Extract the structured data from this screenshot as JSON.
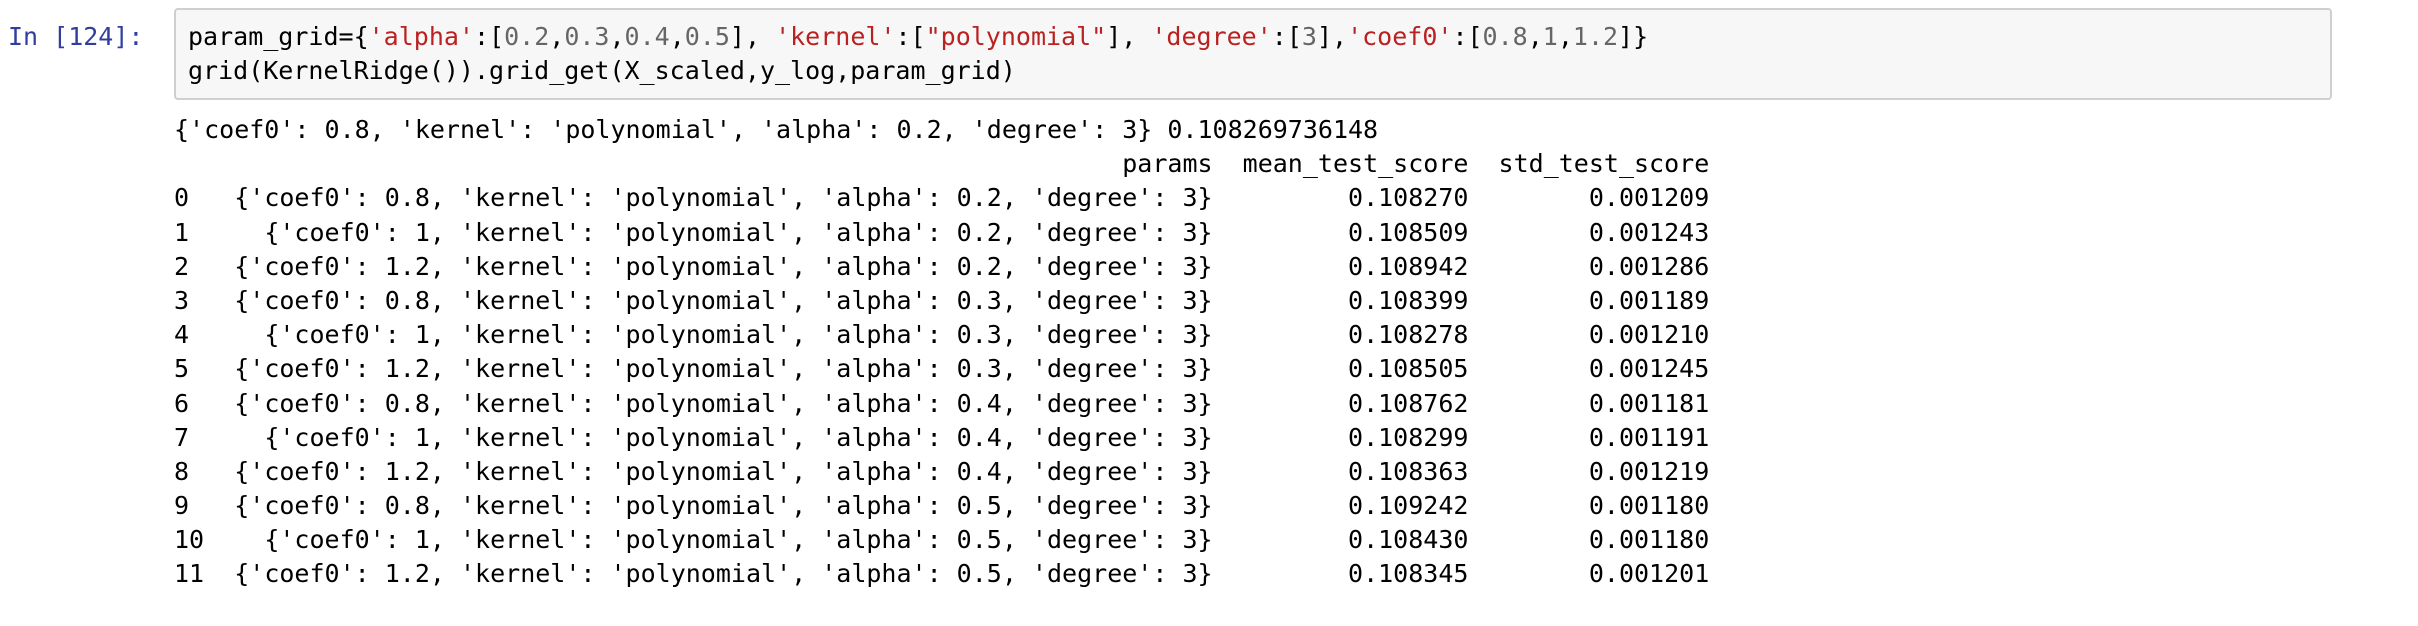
{
  "cell": {
    "prompt": "In [124]:",
    "code": {
      "line1": [
        {
          "t": "param_grid={",
          "c": ""
        },
        {
          "t": "'alpha'",
          "c": "str"
        },
        {
          "t": ":[",
          "c": ""
        },
        {
          "t": "0.2",
          "c": "num"
        },
        {
          "t": ",",
          "c": ""
        },
        {
          "t": "0.3",
          "c": "num"
        },
        {
          "t": ",",
          "c": ""
        },
        {
          "t": "0.4",
          "c": "num"
        },
        {
          "t": ",",
          "c": ""
        },
        {
          "t": "0.5",
          "c": "num"
        },
        {
          "t": "], ",
          "c": ""
        },
        {
          "t": "'kernel'",
          "c": "str"
        },
        {
          "t": ":[",
          "c": ""
        },
        {
          "t": "\"polynomial\"",
          "c": "str"
        },
        {
          "t": "], ",
          "c": ""
        },
        {
          "t": "'degree'",
          "c": "str"
        },
        {
          "t": ":[",
          "c": ""
        },
        {
          "t": "3",
          "c": "num"
        },
        {
          "t": "],",
          "c": ""
        },
        {
          "t": "'coef0'",
          "c": "str"
        },
        {
          "t": ":[",
          "c": ""
        },
        {
          "t": "0.8",
          "c": "num"
        },
        {
          "t": ",",
          "c": ""
        },
        {
          "t": "1",
          "c": "num"
        },
        {
          "t": ",",
          "c": ""
        },
        {
          "t": "1.2",
          "c": "num"
        },
        {
          "t": "]}",
          "c": ""
        }
      ],
      "line2": "grid(KernelRidge()).grid_get(X_scaled,y_log,param_grid)"
    },
    "output": {
      "best": "{'coef0': 0.8, 'kernel': 'polynomial', 'alpha': 0.2, 'degree': 3} 0.108269736148",
      "header": {
        "params": "params",
        "mean_test_score": "mean_test_score",
        "std_test_score": "std_test_score"
      },
      "rows": [
        {
          "index": "0",
          "params": "{'coef0': 0.8, 'kernel': 'polynomial', 'alpha': 0.2, 'degree': 3}",
          "mean": "0.108270",
          "std": "0.001209"
        },
        {
          "index": "1",
          "params": "{'coef0': 1, 'kernel': 'polynomial', 'alpha': 0.2, 'degree': 3}",
          "mean": "0.108509",
          "std": "0.001243"
        },
        {
          "index": "2",
          "params": "{'coef0': 1.2, 'kernel': 'polynomial', 'alpha': 0.2, 'degree': 3}",
          "mean": "0.108942",
          "std": "0.001286"
        },
        {
          "index": "3",
          "params": "{'coef0': 0.8, 'kernel': 'polynomial', 'alpha': 0.3, 'degree': 3}",
          "mean": "0.108399",
          "std": "0.001189"
        },
        {
          "index": "4",
          "params": "{'coef0': 1, 'kernel': 'polynomial', 'alpha': 0.3, 'degree': 3}",
          "mean": "0.108278",
          "std": "0.001210"
        },
        {
          "index": "5",
          "params": "{'coef0': 1.2, 'kernel': 'polynomial', 'alpha': 0.3, 'degree': 3}",
          "mean": "0.108505",
          "std": "0.001245"
        },
        {
          "index": "6",
          "params": "{'coef0': 0.8, 'kernel': 'polynomial', 'alpha': 0.4, 'degree': 3}",
          "mean": "0.108762",
          "std": "0.001181"
        },
        {
          "index": "7",
          "params": "{'coef0': 1, 'kernel': 'polynomial', 'alpha': 0.4, 'degree': 3}",
          "mean": "0.108299",
          "std": "0.001191"
        },
        {
          "index": "8",
          "params": "{'coef0': 1.2, 'kernel': 'polynomial', 'alpha': 0.4, 'degree': 3}",
          "mean": "0.108363",
          "std": "0.001219"
        },
        {
          "index": "9",
          "params": "{'coef0': 0.8, 'kernel': 'polynomial', 'alpha': 0.5, 'degree': 3}",
          "mean": "0.109242",
          "std": "0.001180"
        },
        {
          "index": "10",
          "params": "{'coef0': 1, 'kernel': 'polynomial', 'alpha': 0.5, 'degree': 3}",
          "mean": "0.108430",
          "std": "0.001180"
        },
        {
          "index": "11",
          "params": "{'coef0': 1.2, 'kernel': 'polynomial', 'alpha': 0.5, 'degree': 3}",
          "mean": "0.108345",
          "std": "0.001201"
        }
      ]
    }
  },
  "colors": {
    "prompt": "#303f9f",
    "string": "#ba2121",
    "number": "#666666",
    "input_bg": "#f7f7f7",
    "input_border": "#cfcfcf"
  }
}
